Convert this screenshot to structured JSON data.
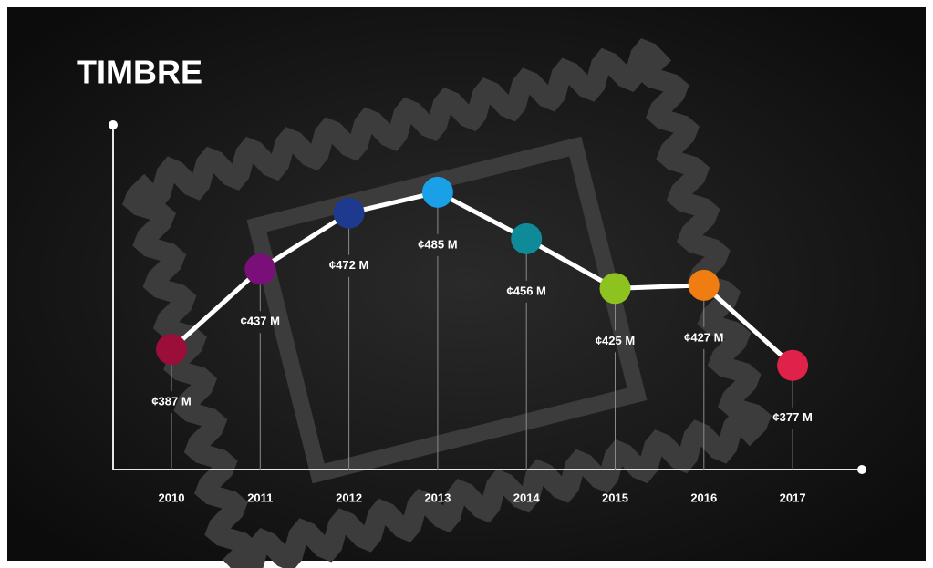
{
  "chart_data": {
    "type": "line",
    "title": "TIMBRE",
    "categories": [
      "2010",
      "2011",
      "2012",
      "2013",
      "2014",
      "2015",
      "2016",
      "2017"
    ],
    "values": [
      387,
      437,
      472,
      485,
      456,
      425,
      427,
      377
    ],
    "value_labels": [
      "¢387 M",
      "¢437 M",
      "¢472 M",
      "¢485 M",
      "¢456 M",
      "¢425 M",
      "¢427 M",
      "¢377 M"
    ],
    "colors": [
      "#9b0e3a",
      "#7a0f7a",
      "#1d3a8f",
      "#1aa0e6",
      "#0f8a99",
      "#8dc21f",
      "#f07d12",
      "#e0224a"
    ],
    "color": "#ffffff",
    "ylim": [
      312,
      527
    ]
  }
}
